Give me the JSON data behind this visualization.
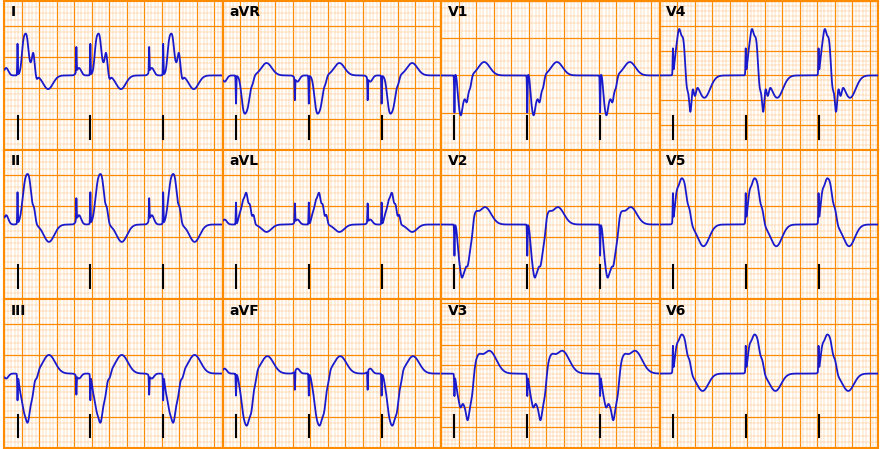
{
  "bg_color": "#ffffff",
  "grid_major_color": "#FF8C00",
  "grid_minor_color": "#FFB870",
  "ecg_color": "#1a1acd",
  "ecg_linewidth": 1.3,
  "label_color": "#000000",
  "label_fontsize": 10,
  "label_fontweight": "bold",
  "fig_width": 8.8,
  "fig_height": 4.49,
  "dpi": 100,
  "hr": 72,
  "t_dur": 2.5,
  "leads": [
    "I",
    "aVR",
    "V1",
    "V4",
    "II",
    "aVL",
    "V2",
    "V5",
    "III",
    "aVF",
    "V3",
    "V6"
  ],
  "lead_types": [
    "I",
    "aVR",
    "V1",
    "V4",
    "II",
    "aVL",
    "V2",
    "V5",
    "III",
    "aVF",
    "V3",
    "V6"
  ]
}
